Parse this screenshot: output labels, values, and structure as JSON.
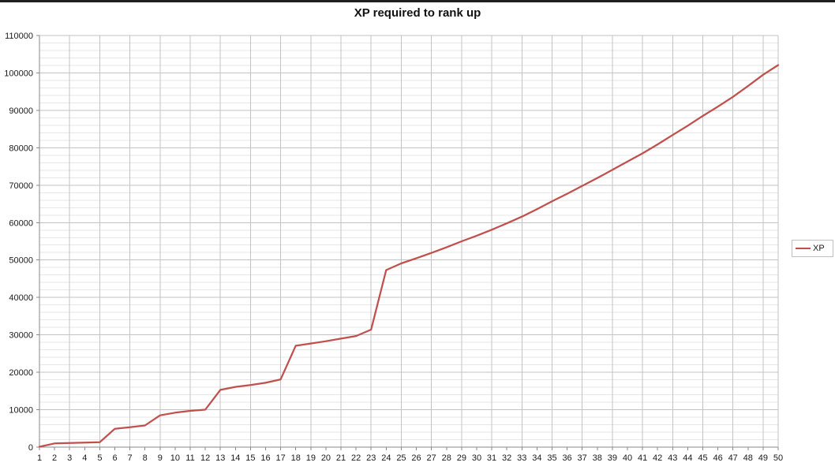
{
  "title": "XP required to rank up",
  "legend": {
    "series_label": "XP"
  },
  "colors": {
    "series_line": "#c0504d",
    "grid_major": "#c3c3c3",
    "grid_minor": "#e7e7e7",
    "axis": "#8a8a8a",
    "tick_text": "#1a1a1a",
    "title_text": "#111111"
  },
  "chart_data": {
    "type": "line",
    "title": "XP required to rank up",
    "xlabel": "",
    "ylabel": "",
    "x": [
      1,
      2,
      3,
      4,
      5,
      6,
      7,
      8,
      9,
      10,
      11,
      12,
      13,
      14,
      15,
      16,
      17,
      18,
      19,
      20,
      21,
      22,
      23,
      24,
      25,
      26,
      27,
      28,
      29,
      30,
      31,
      32,
      33,
      34,
      35,
      36,
      37,
      38,
      39,
      40,
      41,
      42,
      43,
      44,
      45,
      46,
      47,
      48,
      49,
      50
    ],
    "series": [
      {
        "name": "XP",
        "values": [
          100,
          1000,
          1100,
          1200,
          1300,
          4900,
          5300,
          5800,
          8500,
          9200,
          9700,
          10000,
          15300,
          16100,
          16600,
          17200,
          18100,
          27100,
          27700,
          28300,
          29000,
          29700,
          31400,
          47300,
          49100,
          50500,
          51900,
          53400,
          55000,
          56500,
          58100,
          59800,
          61600,
          63600,
          65700,
          67700,
          69800,
          71900,
          74100,
          76300,
          78500,
          80900,
          83400,
          85900,
          88500,
          91000,
          93600,
          96500,
          99500,
          102100
        ]
      }
    ],
    "xlim": [
      1,
      50
    ],
    "ylim": [
      0,
      110000
    ],
    "y_ticks": [
      0,
      10000,
      20000,
      30000,
      40000,
      50000,
      60000,
      70000,
      80000,
      90000,
      100000,
      110000
    ],
    "y_minor_step": 2000,
    "x_grid_step": 2,
    "x_tick_every": 1,
    "grid": true,
    "legend_position": "right"
  }
}
